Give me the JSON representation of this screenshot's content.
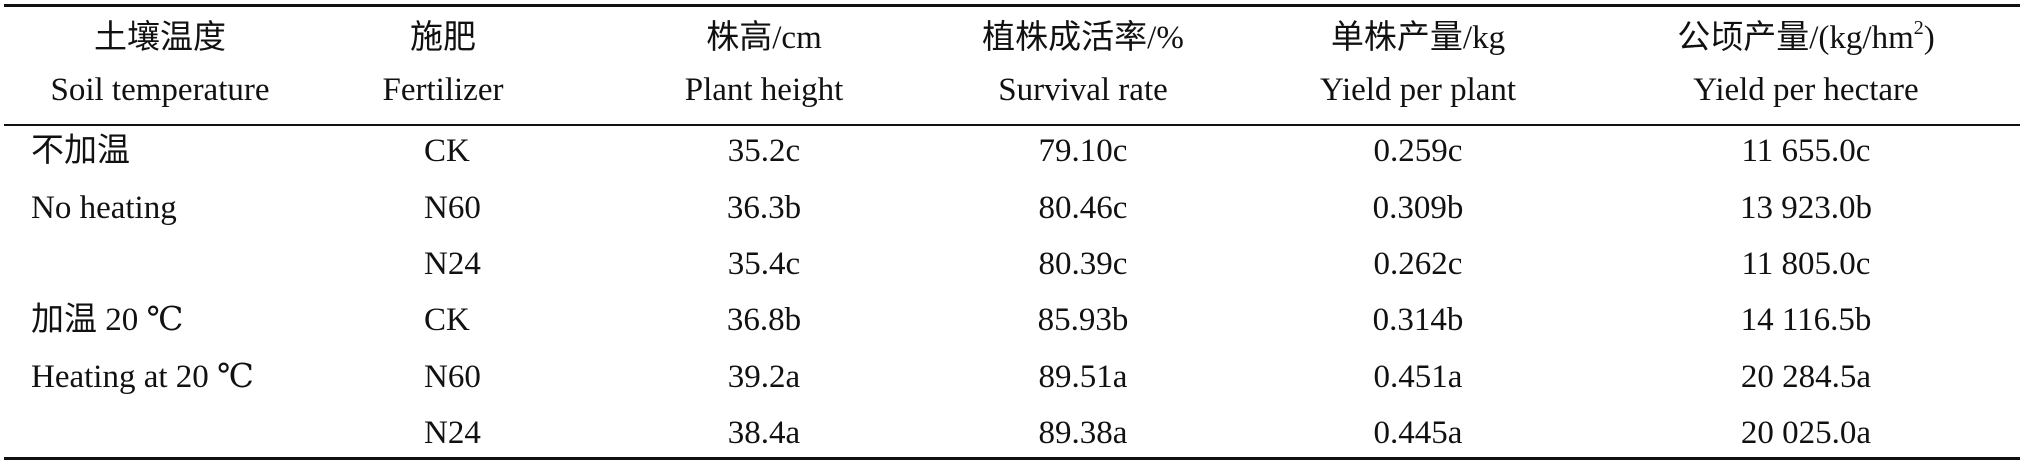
{
  "table": {
    "headers": [
      {
        "zh": "土壤温度",
        "en": "Soil temperature"
      },
      {
        "zh": "施肥",
        "en": "Fertilizer"
      },
      {
        "zh": "株高/cm",
        "en": "Plant height"
      },
      {
        "zh": "植株成活率/%",
        "en": "Survival rate"
      },
      {
        "zh": "单株产量/kg",
        "en": "Yield per plant"
      },
      {
        "zh_prefix": "公顷产量/(kg/hm",
        "zh_sup": "2",
        "zh_suffix": ")",
        "en": "Yield per hectare"
      }
    ],
    "group_labels": [
      {
        "zh": "不加温",
        "en": "No heating"
      },
      {
        "zh": "加温 20 ℃",
        "en": "Heating at 20 ℃"
      }
    ],
    "rows": [
      {
        "fertilizer": "CK",
        "height": "35.2c",
        "survival": "79.10c",
        "yield_plant": "0.259c",
        "yield_ha": "11 655.0c"
      },
      {
        "fertilizer": "N60",
        "height": "36.3b",
        "survival": "80.46c",
        "yield_plant": "0.309b",
        "yield_ha": "13 923.0b"
      },
      {
        "fertilizer": "N24",
        "height": "35.4c",
        "survival": "80.39c",
        "yield_plant": "0.262c",
        "yield_ha": "11 805.0c"
      },
      {
        "fertilizer": "CK",
        "height": "36.8b",
        "survival": "85.93b",
        "yield_plant": "0.314b",
        "yield_ha": "14 116.5b"
      },
      {
        "fertilizer": "N60",
        "height": "39.2a",
        "survival": "89.51a",
        "yield_plant": "0.451a",
        "yield_ha": "20 284.5a"
      },
      {
        "fertilizer": "N24",
        "height": "38.4a",
        "survival": "89.38a",
        "yield_plant": "0.445a",
        "yield_ha": "20 025.0a"
      }
    ]
  }
}
